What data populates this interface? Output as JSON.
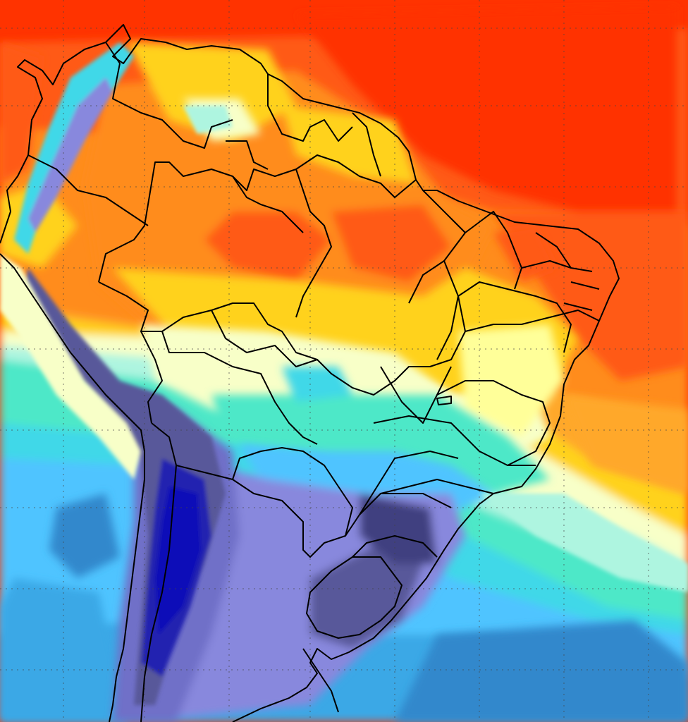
{
  "map": {
    "type": "temperature-anomaly-field",
    "region": "South America",
    "palette": {
      "deep_red": "#ff3300",
      "red_orange": "#ff5a12",
      "orange": "#ff8c1a",
      "orange_light": "#ffa82a",
      "yellow": "#ffd21f",
      "pale_yellow": "#ffff99",
      "cream": "#f8ffc8",
      "mint": "#aef5e0",
      "aqua": "#4ee8c8",
      "cyan": "#40d8e8",
      "light_blue": "#50c4ff",
      "mid_blue": "#3aa8e6",
      "steel_blue": "#3388cc",
      "lavender": "#8888dd",
      "periwinkle": "#7070c8",
      "slate": "#58589a",
      "dark_slate": "#404080",
      "navy": "#2020b0",
      "deep_navy": "#0a0ab8"
    },
    "borders_color": "#000000",
    "graticule": {
      "visible": true,
      "style": "dotted",
      "color": "#444444"
    }
  }
}
